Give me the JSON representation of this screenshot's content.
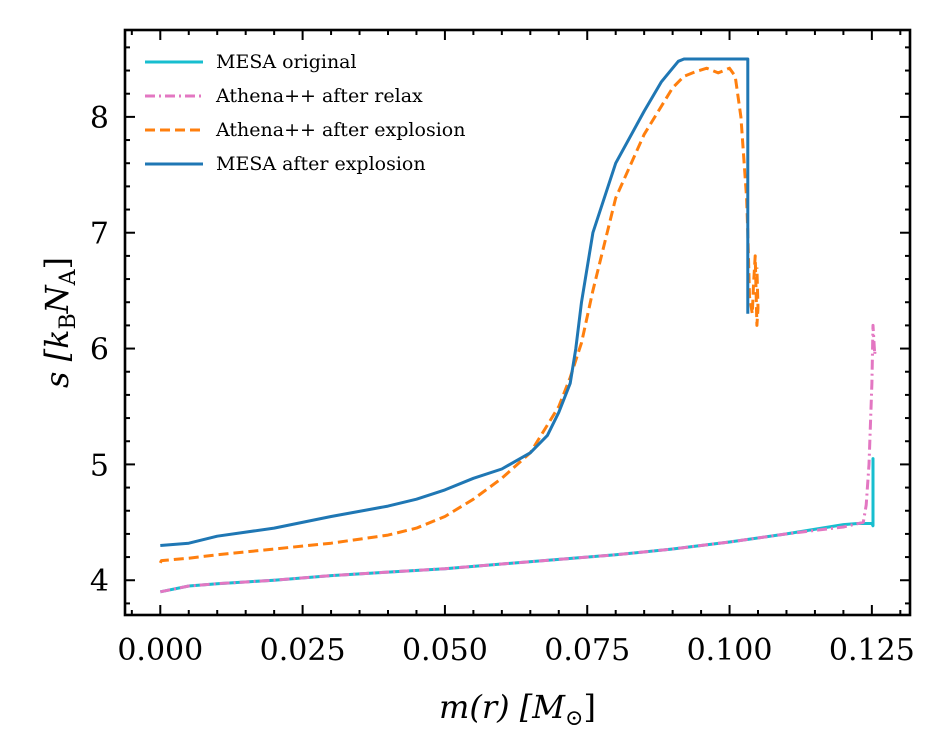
{
  "chart_data": {
    "type": "line",
    "title": "",
    "xlabel": "m(r) [M_⊙]",
    "ylabel": "s [k_B N_A]",
    "xlabel_parts": {
      "main": "m(r) [M",
      "sub": "⊙",
      "close": "]"
    },
    "ylabel_parts": {
      "main": "s [k",
      "sub1": "B",
      "mid": "N",
      "sub2": "A",
      "close": "]"
    },
    "xlim": [
      -0.0062,
      0.1317
    ],
    "ylim": [
      3.7,
      8.75
    ],
    "xticks": [
      0.0,
      0.025,
      0.05,
      0.075,
      0.1,
      0.125
    ],
    "xtick_labels": [
      "0.000",
      "0.025",
      "0.050",
      "0.075",
      "0.100",
      "0.125"
    ],
    "yticks": [
      4,
      5,
      6,
      7,
      8
    ],
    "ytick_labels": [
      "4",
      "5",
      "6",
      "7",
      "8"
    ],
    "legend_position": "top-left",
    "series": [
      {
        "name": "MESA original",
        "color": "#17becf",
        "dash": "solid",
        "x": [
          0.0,
          0.005,
          0.01,
          0.02,
          0.03,
          0.04,
          0.05,
          0.06,
          0.07,
          0.08,
          0.09,
          0.1,
          0.11,
          0.12,
          0.1225,
          0.125,
          0.1252,
          0.1252,
          0.1252
        ],
        "y": [
          3.9,
          3.95,
          3.97,
          4.0,
          4.04,
          4.07,
          4.1,
          4.14,
          4.18,
          4.22,
          4.27,
          4.33,
          4.4,
          4.48,
          4.49,
          4.49,
          4.47,
          5.05,
          4.47
        ]
      },
      {
        "name": "Athena++ after relax",
        "color": "#e377c2",
        "dash": "dashdot",
        "x": [
          0.0,
          0.005,
          0.01,
          0.02,
          0.03,
          0.04,
          0.05,
          0.06,
          0.07,
          0.08,
          0.09,
          0.1,
          0.11,
          0.12,
          0.1235,
          0.124,
          0.1245,
          0.125,
          0.1252,
          0.1255,
          0.1256
        ],
        "y": [
          3.9,
          3.95,
          3.97,
          4.0,
          4.04,
          4.07,
          4.1,
          4.14,
          4.18,
          4.22,
          4.27,
          4.33,
          4.4,
          4.46,
          4.5,
          4.65,
          5.0,
          5.7,
          6.2,
          5.95,
          6.0
        ]
      },
      {
        "name": "Athena++ after explosion",
        "color": "#ff7f0e",
        "dash": "dashed",
        "x": [
          0.0,
          0.0002,
          0.005,
          0.01,
          0.02,
          0.03,
          0.04,
          0.045,
          0.05,
          0.055,
          0.06,
          0.065,
          0.07,
          0.072,
          0.074,
          0.076,
          0.08,
          0.085,
          0.09,
          0.092,
          0.094,
          0.096,
          0.098,
          0.1,
          0.101,
          0.102,
          0.103,
          0.1032,
          0.1035,
          0.104,
          0.1042,
          0.1045,
          0.1048,
          0.105,
          0.1048
        ],
        "y": [
          4.15,
          4.17,
          4.19,
          4.22,
          4.27,
          4.32,
          4.39,
          4.45,
          4.55,
          4.7,
          4.88,
          5.1,
          5.5,
          5.75,
          6.05,
          6.5,
          7.3,
          7.85,
          8.25,
          8.35,
          8.39,
          8.42,
          8.38,
          8.42,
          8.35,
          8.0,
          7.3,
          7.0,
          6.45,
          6.3,
          6.55,
          6.8,
          6.2,
          6.35,
          6.7
        ]
      },
      {
        "name": "MESA after explosion",
        "color": "#1f77b4",
        "dash": "solid",
        "x": [
          0.0,
          0.005,
          0.01,
          0.02,
          0.03,
          0.04,
          0.045,
          0.05,
          0.055,
          0.06,
          0.065,
          0.068,
          0.07,
          0.072,
          0.073,
          0.074,
          0.076,
          0.08,
          0.085,
          0.088,
          0.09,
          0.091,
          0.092,
          0.095,
          0.1,
          0.1032,
          0.1032,
          0.1032
        ],
        "y": [
          4.3,
          4.32,
          4.38,
          4.45,
          4.55,
          4.64,
          4.7,
          4.78,
          4.88,
          4.96,
          5.1,
          5.25,
          5.45,
          5.7,
          6.0,
          6.4,
          7.0,
          7.6,
          8.05,
          8.3,
          8.42,
          8.48,
          8.5,
          8.5,
          8.5,
          8.5,
          6.3,
          6.3
        ]
      }
    ]
  }
}
